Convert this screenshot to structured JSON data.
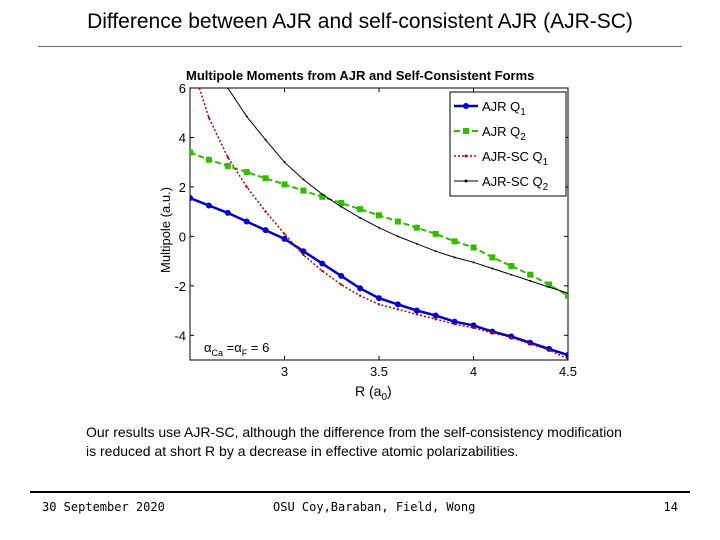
{
  "slide": {
    "title": "Difference between AJR and self-consistent AJR (AJR-SC)",
    "body_text": "Our results use AJR-SC, although the difference from the self-consistency modification is reduced at short R by a decrease in effective atomic polarizabilities.",
    "footer": {
      "date": "30 September 2020",
      "credit": "OSU Coy,Baraban, Field, Wong",
      "page": "14"
    }
  },
  "chart_data": {
    "type": "line",
    "title": "Multipole Moments from AJR and Self-Consistent Forms",
    "xlabel": "R (a0)",
    "ylabel": "Multipole (a.u.)",
    "xlim": [
      2.5,
      4.5
    ],
    "ylim": [
      -5,
      6
    ],
    "xticks": [
      3,
      3.5,
      4,
      4.5
    ],
    "xtick_labels": [
      "3",
      "3.5",
      "4",
      "4.5"
    ],
    "yticks": [
      -4,
      -2,
      0,
      2,
      4,
      6
    ],
    "ytick_labels": [
      "-4",
      "-2",
      "0",
      "2",
      "4",
      "6"
    ],
    "grid": false,
    "legend_position": "top-right",
    "annotation": "αCa = αF = 6",
    "series": [
      {
        "name": "AJR Q1",
        "color": "#0000cc",
        "style": "solid-marker",
        "x": [
          2.5,
          2.6,
          2.7,
          2.8,
          2.9,
          3.0,
          3.1,
          3.2,
          3.3,
          3.4,
          3.5,
          3.6,
          3.7,
          3.8,
          3.9,
          4.0,
          4.1,
          4.2,
          4.3,
          4.4,
          4.5
        ],
        "y": [
          1.55,
          1.25,
          0.95,
          0.6,
          0.25,
          -0.1,
          -0.6,
          -1.1,
          -1.6,
          -2.1,
          -2.5,
          -2.75,
          -3.0,
          -3.2,
          -3.45,
          -3.6,
          -3.85,
          -4.05,
          -4.3,
          -4.55,
          -4.8
        ]
      },
      {
        "name": "AJR Q2",
        "color": "#33bb00",
        "style": "dashed-marker",
        "x": [
          2.5,
          2.6,
          2.7,
          2.8,
          2.9,
          3.0,
          3.1,
          3.2,
          3.3,
          3.4,
          3.5,
          3.6,
          3.7,
          3.8,
          3.9,
          4.0,
          4.1,
          4.2,
          4.3,
          4.4,
          4.5
        ],
        "y": [
          3.4,
          3.1,
          2.85,
          2.6,
          2.35,
          2.1,
          1.85,
          1.6,
          1.35,
          1.1,
          0.85,
          0.6,
          0.35,
          0.1,
          -0.2,
          -0.45,
          -0.85,
          -1.2,
          -1.55,
          -1.95,
          -2.4
        ]
      },
      {
        "name": "AJR-SC Q1",
        "color": "#bb0000",
        "style": "dotted",
        "x": [
          2.55,
          2.6,
          2.7,
          2.8,
          2.9,
          3.0,
          3.1,
          3.2,
          3.3,
          3.4,
          3.5,
          3.6,
          3.7,
          3.8,
          3.9,
          4.0,
          4.1,
          4.2,
          4.3,
          4.4,
          4.5
        ],
        "y": [
          6.0,
          4.8,
          3.2,
          2.0,
          1.0,
          0.1,
          -0.75,
          -1.4,
          -1.95,
          -2.4,
          -2.75,
          -2.95,
          -3.15,
          -3.35,
          -3.55,
          -3.7,
          -3.9,
          -4.1,
          -4.35,
          -4.6,
          -4.95
        ]
      },
      {
        "name": "AJR-SC Q2",
        "color": "#000000",
        "style": "thin",
        "x": [
          2.7,
          2.8,
          2.9,
          3.0,
          3.1,
          3.2,
          3.3,
          3.4,
          3.5,
          3.6,
          3.7,
          3.8,
          3.9,
          4.0,
          4.1,
          4.2,
          4.3,
          4.4,
          4.5
        ],
        "y": [
          6.0,
          4.85,
          3.9,
          3.0,
          2.3,
          1.7,
          1.2,
          0.75,
          0.35,
          0.0,
          -0.3,
          -0.6,
          -0.85,
          -1.05,
          -1.3,
          -1.55,
          -1.8,
          -2.05,
          -2.3
        ]
      }
    ]
  }
}
